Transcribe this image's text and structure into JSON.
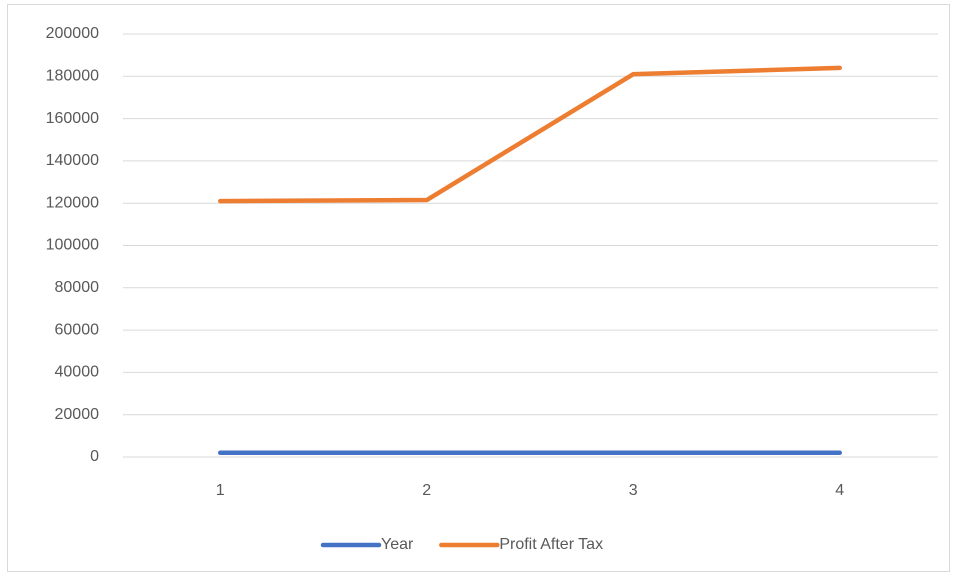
{
  "chart_data": {
    "type": "line",
    "categories": [
      "1",
      "2",
      "3",
      "4"
    ],
    "series": [
      {
        "name": "Year",
        "color": "#4472c4",
        "values": [
          2019,
          2020,
          2021,
          2022
        ]
      },
      {
        "name": "Profit After Tax",
        "color": "#ed7d31",
        "values": [
          121000,
          121500,
          181000,
          184000
        ]
      }
    ],
    "ylim": [
      0,
      200000
    ],
    "yticks": [
      0,
      20000,
      40000,
      60000,
      80000,
      100000,
      120000,
      140000,
      160000,
      180000,
      200000
    ],
    "grid": true,
    "legend": "bottom"
  }
}
